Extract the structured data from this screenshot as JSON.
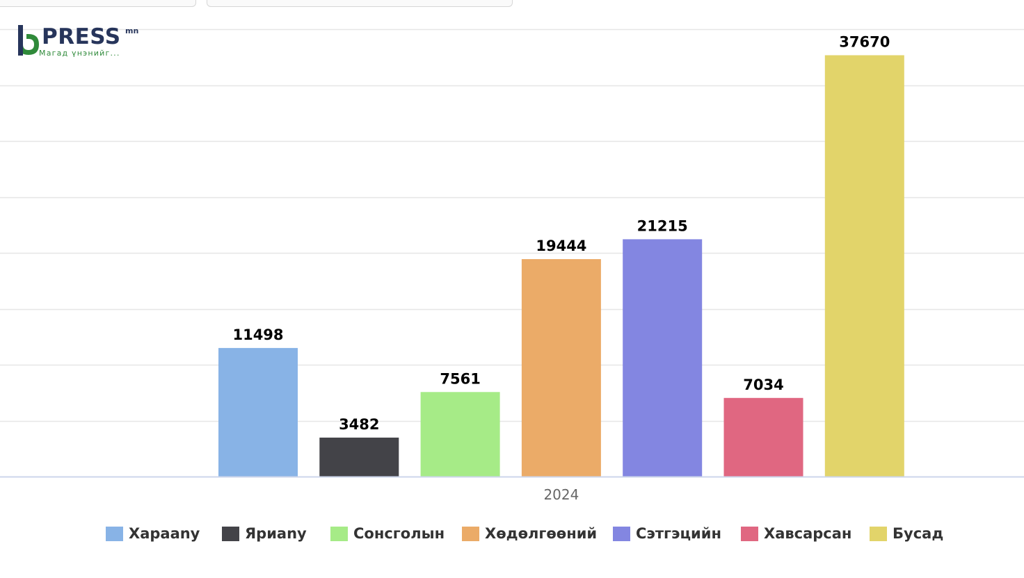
{
  "logo": {
    "name": "PRESS",
    "suffix": "mn",
    "tagline": "Магад үнэнийг...",
    "colors": {
      "brand_green": "#2f8a3a",
      "brand_navy": "#27355b"
    }
  },
  "chart_data": {
    "type": "bar",
    "categories": [
      "2024"
    ],
    "series": [
      {
        "name": "Хараany",
        "values": [
          11498
        ],
        "color": "#88b3e6"
      },
      {
        "name": "Яриany",
        "values": [
          3482
        ],
        "color": "#434348"
      },
      {
        "name": "Сонсголын",
        "values": [
          7561
        ],
        "color": "#a6eb87"
      },
      {
        "name": "Хөдөлгөөний",
        "values": [
          19444
        ],
        "color": "#ebab68"
      },
      {
        "name": "Сэтгэцийн",
        "values": [
          21215
        ],
        "color": "#8386e1"
      },
      {
        "name": "Хавсарсан",
        "values": [
          7034
        ],
        "color": "#e06781"
      },
      {
        "name": "Бусад",
        "values": [
          37670
        ],
        "color": "#e2d46a"
      }
    ],
    "title": "",
    "xlabel": "",
    "ylabel": "",
    "ylim": [
      0,
      40000
    ],
    "grid": true,
    "legend": "bottom",
    "data_labels": true
  }
}
